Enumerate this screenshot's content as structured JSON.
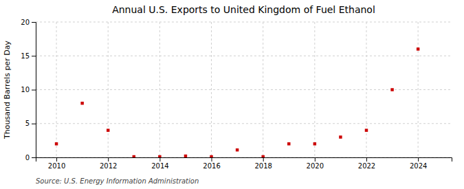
{
  "chart_data": {
    "type": "scatter",
    "title": "Annual U.S. Exports to United Kingdom of Fuel Ethanol",
    "ylabel": "Thousand Barrels per Day",
    "source": "Source: U.S. Energy Information Administration",
    "x": [
      2010,
      2011,
      2012,
      2013,
      2014,
      2015,
      2016,
      2017,
      2018,
      2019,
      2020,
      2021,
      2022,
      2023,
      2024
    ],
    "values": [
      2.0,
      8.0,
      4.0,
      0.1,
      0.1,
      0.2,
      0.1,
      1.1,
      0.1,
      2.0,
      2.0,
      3.0,
      4.0,
      10.0,
      16.0
    ],
    "color": "#cc0000",
    "marker": "square",
    "xlim": [
      2009.2,
      2025.3
    ],
    "xticks": [
      2010,
      2012,
      2014,
      2016,
      2018,
      2020,
      2022,
      2024
    ],
    "ylim": [
      0,
      20
    ],
    "yticks": [
      0,
      5,
      10,
      15,
      20
    ],
    "grid": true
  }
}
